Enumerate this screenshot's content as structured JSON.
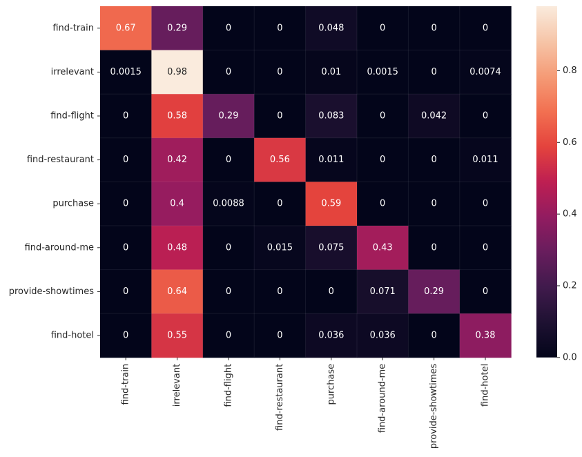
{
  "chart_data": {
    "type": "heatmap",
    "colormap": "rocket",
    "rows": [
      "find-train",
      "irrelevant",
      "find-flight",
      "find-restaurant",
      "purchase",
      "find-around-me",
      "provide-showtimes",
      "find-hotel"
    ],
    "columns": [
      "find-train",
      "irrelevant",
      "find-flight",
      "find-restaurant",
      "purchase",
      "find-around-me",
      "provide-showtimes",
      "find-hotel"
    ],
    "values": [
      [
        0.67,
        0.29,
        0,
        0,
        0.048,
        0,
        0,
        0
      ],
      [
        0.0015,
        0.98,
        0,
        0,
        0.01,
        0.0015,
        0,
        0.0074
      ],
      [
        0,
        0.58,
        0.29,
        0,
        0.083,
        0,
        0.042,
        0
      ],
      [
        0,
        0.42,
        0,
        0.56,
        0.011,
        0,
        0,
        0.011
      ],
      [
        0,
        0.4,
        0.0088,
        0,
        0.59,
        0,
        0,
        0
      ],
      [
        0,
        0.48,
        0,
        0.015,
        0.075,
        0.43,
        0,
        0
      ],
      [
        0,
        0.64,
        0,
        0,
        0,
        0.071,
        0.29,
        0
      ],
      [
        0,
        0.55,
        0,
        0,
        0.036,
        0.036,
        0,
        0.38
      ]
    ],
    "cell_labels": [
      [
        "0.67",
        "0.29",
        "0",
        "0",
        "0.048",
        "0",
        "0",
        "0"
      ],
      [
        "0.0015",
        "0.98",
        "0",
        "0",
        "0.01",
        "0.0015",
        "0",
        "0.0074"
      ],
      [
        "0",
        "0.58",
        "0.29",
        "0",
        "0.083",
        "0",
        "0.042",
        "0"
      ],
      [
        "0",
        "0.42",
        "0",
        "0.56",
        "0.011",
        "0",
        "0",
        "0.011"
      ],
      [
        "0",
        "0.4",
        "0.0088",
        "0",
        "0.59",
        "0",
        "0",
        "0"
      ],
      [
        "0",
        "0.48",
        "0",
        "0.015",
        "0.075",
        "0.43",
        "0",
        "0"
      ],
      [
        "0",
        "0.64",
        "0",
        "0",
        "0",
        "0.071",
        "0.29",
        "0"
      ],
      [
        "0",
        "0.55",
        "0",
        "0",
        "0.036",
        "0.036",
        "0",
        "0.38"
      ]
    ],
    "colorbar": {
      "min": 0.0,
      "max": 0.98,
      "ticks": [
        0.0,
        0.2,
        0.4,
        0.6,
        0.8
      ],
      "tick_labels": [
        "0.0",
        "0.2",
        "0.4",
        "0.6",
        "0.8"
      ]
    },
    "title": "",
    "xlabel": "",
    "ylabel": ""
  }
}
